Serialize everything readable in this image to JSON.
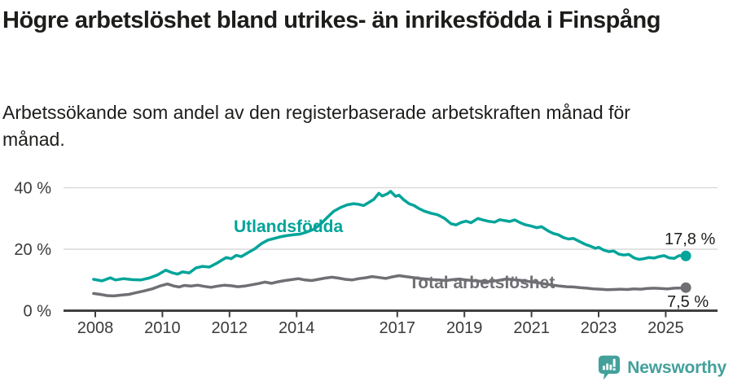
{
  "header": {
    "title": "Högre arbetslöshet bland utrikes- än inrikesfödda i Finspång",
    "subtitle": "Arbetssökande som andel av den registerbaserade arbetskraften månad för månad."
  },
  "footer": {
    "brand": "Newsworthy"
  },
  "colors": {
    "accent_teal": "#00a49a",
    "series_gray": "#6f6f74",
    "text_dark": "#1d1d1b",
    "axis_text": "#3a3a3a",
    "axis_line": "#404040",
    "gridline": "#dadada",
    "logo_teal": "#43a09b"
  },
  "chart_data": {
    "type": "line",
    "title": "Högre arbetslöshet bland utrikes- än inrikesfödda i Finspång",
    "subtitle": "Arbetssökande som andel av den registerbaserade arbetskraften månad för månad.",
    "grid": "horizontal-only",
    "legend_position": "inline-labels",
    "x_axis": {
      "unit": "year",
      "range": [
        2007.9,
        2025.7
      ],
      "tick_values": [
        2008,
        2010,
        2012,
        2014,
        2017,
        2019,
        2021,
        2023,
        2025
      ],
      "tick_labels": [
        "2008",
        "2010",
        "2012",
        "2014",
        "2017",
        "2019",
        "2021",
        "2023",
        "2025"
      ]
    },
    "y_axis": {
      "unit": "%",
      "range": [
        0,
        42
      ],
      "tick_values": [
        0,
        20,
        40
      ],
      "tick_labels": [
        "0 %",
        "20 %",
        "40 %"
      ]
    },
    "series": [
      {
        "name": "Utlandsfödda",
        "color": "#00a49a",
        "end_label": "17,8 %",
        "end_value": 17.8,
        "points": [
          [
            2007.95,
            10.2
          ],
          [
            2008.2,
            9.7
          ],
          [
            2008.45,
            10.7
          ],
          [
            2008.6,
            10.0
          ],
          [
            2008.85,
            10.4
          ],
          [
            2009.1,
            10.1
          ],
          [
            2009.35,
            10.0
          ],
          [
            2009.6,
            10.6
          ],
          [
            2009.85,
            11.6
          ],
          [
            2010.1,
            13.2
          ],
          [
            2010.3,
            12.3
          ],
          [
            2010.45,
            11.9
          ],
          [
            2010.6,
            12.6
          ],
          [
            2010.8,
            12.3
          ],
          [
            2011.0,
            13.9
          ],
          [
            2011.2,
            14.4
          ],
          [
            2011.4,
            14.2
          ],
          [
            2011.6,
            15.3
          ],
          [
            2011.9,
            17.3
          ],
          [
            2012.05,
            16.9
          ],
          [
            2012.2,
            18.0
          ],
          [
            2012.35,
            17.6
          ],
          [
            2012.55,
            18.9
          ],
          [
            2012.75,
            20.1
          ],
          [
            2012.95,
            21.8
          ],
          [
            2013.15,
            23.0
          ],
          [
            2013.3,
            23.4
          ],
          [
            2013.5,
            24.0
          ],
          [
            2013.7,
            24.4
          ],
          [
            2013.9,
            24.7
          ],
          [
            2014.1,
            24.9
          ],
          [
            2014.3,
            25.6
          ],
          [
            2014.5,
            26.4
          ],
          [
            2014.7,
            28.0
          ],
          [
            2014.9,
            30.2
          ],
          [
            2015.1,
            32.3
          ],
          [
            2015.3,
            33.5
          ],
          [
            2015.5,
            34.4
          ],
          [
            2015.7,
            34.8
          ],
          [
            2015.85,
            34.6
          ],
          [
            2016.0,
            34.2
          ],
          [
            2016.15,
            35.2
          ],
          [
            2016.3,
            36.2
          ],
          [
            2016.45,
            38.2
          ],
          [
            2016.55,
            37.3
          ],
          [
            2016.7,
            38.0
          ],
          [
            2016.8,
            38.8
          ],
          [
            2016.95,
            37.2
          ],
          [
            2017.05,
            37.6
          ],
          [
            2017.2,
            36.0
          ],
          [
            2017.35,
            34.8
          ],
          [
            2017.5,
            34.2
          ],
          [
            2017.65,
            33.2
          ],
          [
            2017.8,
            32.4
          ],
          [
            2018.0,
            31.7
          ],
          [
            2018.2,
            31.2
          ],
          [
            2018.4,
            30.1
          ],
          [
            2018.6,
            28.3
          ],
          [
            2018.75,
            27.9
          ],
          [
            2018.9,
            28.7
          ],
          [
            2019.05,
            29.1
          ],
          [
            2019.2,
            28.6
          ],
          [
            2019.4,
            30.0
          ],
          [
            2019.55,
            29.5
          ],
          [
            2019.7,
            29.1
          ],
          [
            2019.9,
            28.8
          ],
          [
            2020.05,
            29.6
          ],
          [
            2020.2,
            29.3
          ],
          [
            2020.35,
            29.0
          ],
          [
            2020.5,
            29.5
          ],
          [
            2020.65,
            28.7
          ],
          [
            2020.8,
            28.0
          ],
          [
            2021.0,
            27.5
          ],
          [
            2021.15,
            27.0
          ],
          [
            2021.3,
            27.3
          ],
          [
            2021.5,
            25.9
          ],
          [
            2021.65,
            25.1
          ],
          [
            2021.8,
            24.7
          ],
          [
            2021.95,
            23.8
          ],
          [
            2022.1,
            23.3
          ],
          [
            2022.25,
            23.5
          ],
          [
            2022.45,
            22.4
          ],
          [
            2022.6,
            21.6
          ],
          [
            2022.75,
            21.0
          ],
          [
            2022.9,
            20.3
          ],
          [
            2023.0,
            20.6
          ],
          [
            2023.15,
            19.7
          ],
          [
            2023.3,
            19.2
          ],
          [
            2023.45,
            19.4
          ],
          [
            2023.6,
            18.4
          ],
          [
            2023.75,
            18.1
          ],
          [
            2023.9,
            18.3
          ],
          [
            2024.05,
            17.2
          ],
          [
            2024.2,
            16.7
          ],
          [
            2024.35,
            16.9
          ],
          [
            2024.5,
            17.3
          ],
          [
            2024.65,
            17.1
          ],
          [
            2024.8,
            17.6
          ],
          [
            2024.95,
            17.9
          ],
          [
            2025.1,
            17.2
          ],
          [
            2025.25,
            17.0
          ],
          [
            2025.4,
            17.9
          ],
          [
            2025.6,
            17.8
          ]
        ]
      },
      {
        "name": "Total arbetslöshet",
        "color": "#6f6f74",
        "end_label": "7,5 %",
        "end_value": 7.5,
        "points": [
          [
            2007.95,
            5.6
          ],
          [
            2008.15,
            5.3
          ],
          [
            2008.35,
            4.9
          ],
          [
            2008.55,
            4.8
          ],
          [
            2008.8,
            5.1
          ],
          [
            2009.0,
            5.3
          ],
          [
            2009.2,
            5.8
          ],
          [
            2009.45,
            6.4
          ],
          [
            2009.7,
            7.1
          ],
          [
            2009.95,
            8.1
          ],
          [
            2010.15,
            8.7
          ],
          [
            2010.35,
            8.0
          ],
          [
            2010.5,
            7.7
          ],
          [
            2010.65,
            8.2
          ],
          [
            2010.85,
            8.0
          ],
          [
            2011.05,
            8.3
          ],
          [
            2011.25,
            7.9
          ],
          [
            2011.45,
            7.6
          ],
          [
            2011.65,
            8.0
          ],
          [
            2011.85,
            8.3
          ],
          [
            2012.05,
            8.1
          ],
          [
            2012.25,
            7.8
          ],
          [
            2012.45,
            8.0
          ],
          [
            2012.65,
            8.4
          ],
          [
            2012.85,
            8.8
          ],
          [
            2013.05,
            9.3
          ],
          [
            2013.25,
            8.9
          ],
          [
            2013.45,
            9.4
          ],
          [
            2013.65,
            9.8
          ],
          [
            2013.85,
            10.1
          ],
          [
            2014.05,
            10.4
          ],
          [
            2014.25,
            10.0
          ],
          [
            2014.45,
            9.8
          ],
          [
            2014.65,
            10.2
          ],
          [
            2014.85,
            10.6
          ],
          [
            2015.05,
            10.9
          ],
          [
            2015.25,
            10.6
          ],
          [
            2015.45,
            10.2
          ],
          [
            2015.65,
            10.0
          ],
          [
            2015.85,
            10.4
          ],
          [
            2016.05,
            10.7
          ],
          [
            2016.25,
            11.1
          ],
          [
            2016.45,
            10.8
          ],
          [
            2016.65,
            10.5
          ],
          [
            2016.85,
            11.0
          ],
          [
            2017.05,
            11.4
          ],
          [
            2017.25,
            11.1
          ],
          [
            2017.45,
            10.8
          ],
          [
            2017.65,
            10.5
          ],
          [
            2017.85,
            10.3
          ],
          [
            2018.05,
            10.1
          ],
          [
            2018.25,
            10.0
          ],
          [
            2018.45,
            9.8
          ],
          [
            2018.65,
            10.1
          ],
          [
            2018.85,
            10.3
          ],
          [
            2019.05,
            10.0
          ],
          [
            2019.25,
            9.8
          ],
          [
            2019.45,
            9.6
          ],
          [
            2019.65,
            9.4
          ],
          [
            2019.85,
            9.6
          ],
          [
            2020.05,
            9.9
          ],
          [
            2020.25,
            10.3
          ],
          [
            2020.45,
            10.1
          ],
          [
            2020.65,
            9.9
          ],
          [
            2020.85,
            9.6
          ],
          [
            2021.05,
            9.3
          ],
          [
            2021.25,
            9.0
          ],
          [
            2021.45,
            8.6
          ],
          [
            2021.65,
            8.3
          ],
          [
            2021.85,
            8.0
          ],
          [
            2022.05,
            7.8
          ],
          [
            2022.25,
            7.7
          ],
          [
            2022.45,
            7.5
          ],
          [
            2022.65,
            7.3
          ],
          [
            2022.85,
            7.1
          ],
          [
            2023.05,
            7.0
          ],
          [
            2023.25,
            6.8
          ],
          [
            2023.45,
            6.9
          ],
          [
            2023.65,
            7.0
          ],
          [
            2023.85,
            6.9
          ],
          [
            2024.05,
            7.1
          ],
          [
            2024.25,
            7.0
          ],
          [
            2024.45,
            7.2
          ],
          [
            2024.65,
            7.3
          ],
          [
            2024.85,
            7.2
          ],
          [
            2025.05,
            7.1
          ],
          [
            2025.25,
            7.3
          ],
          [
            2025.45,
            7.4
          ],
          [
            2025.6,
            7.5
          ]
        ]
      }
    ]
  }
}
